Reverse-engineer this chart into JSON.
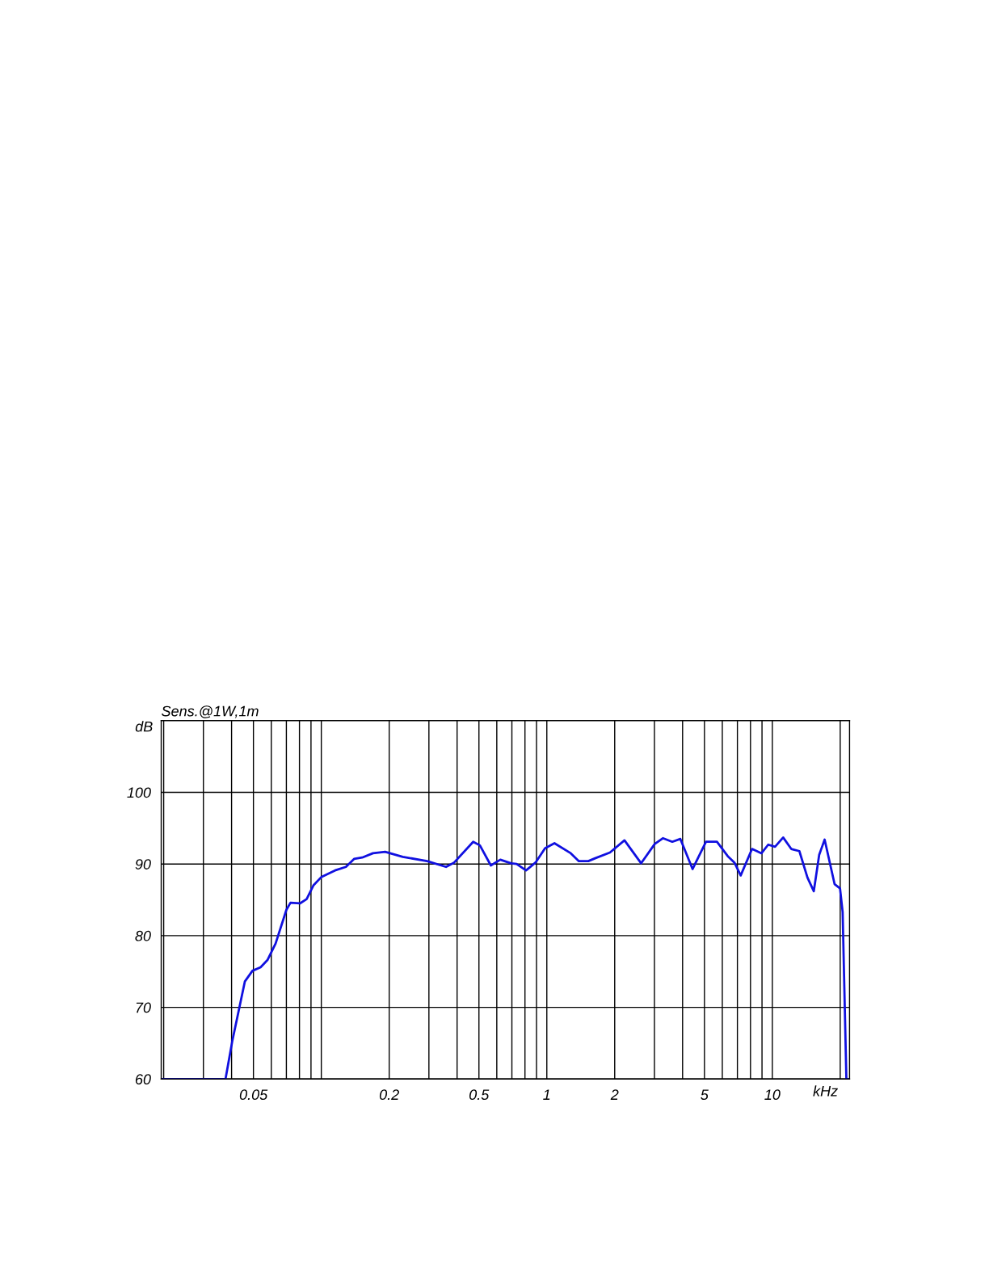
{
  "chart_data": {
    "type": "line",
    "title": "Sens.@1W,1m",
    "xlabel": "kHz",
    "ylabel": "dB",
    "log": "x",
    "x": [
      0.0195,
      0.0376,
      0.0403,
      0.0458,
      0.0495,
      0.0538,
      0.0577,
      0.0627,
      0.07,
      0.073,
      0.0804,
      0.0861,
      0.0922,
      0.1002,
      0.115,
      0.1286,
      0.1397,
      0.1518,
      0.1694,
      0.1919,
      0.2297,
      0.2945,
      0.3573,
      0.3882,
      0.4715,
      0.5049,
      0.5646,
      0.622,
      0.6948,
      0.734,
      0.809,
      0.891,
      0.982,
      1.081,
      1.277,
      1.387,
      1.528,
      1.637,
      1.905,
      2.21,
      2.62,
      3.01,
      3.27,
      3.6,
      3.91,
      4.43,
      5.08,
      5.68,
      6.34,
      6.79,
      7.24,
      8.13,
      8.95,
      9.59,
      10.28,
      11.17,
      12.13,
      13.18,
      14.32,
      15.27,
      16.14,
      17.06,
      18.88,
      19.96,
      20.5,
      21.3,
      22
    ],
    "series": [
      {
        "color": "#1010e0",
        "values": [
          60,
          60,
          65.3,
          73.6,
          75.1,
          75.6,
          76.6,
          78.9,
          83.6,
          84.6,
          84.5,
          85.1,
          87.0,
          88.2,
          89.1,
          89.6,
          90.7,
          90.9,
          91.5,
          91.7,
          91.0,
          90.4,
          89.6,
          90.2,
          93.1,
          92.6,
          89.8,
          90.6,
          90.1,
          90.0,
          89.1,
          90.2,
          92.2,
          92.9,
          91.5,
          90.4,
          90.4,
          90.8,
          91.6,
          93.3,
          90.1,
          92.8,
          93.6,
          93.1,
          93.5,
          89.3,
          93.1,
          93.1,
          91.1,
          90.2,
          88.4,
          92.1,
          91.5,
          92.7,
          92.4,
          93.7,
          92.1,
          91.8,
          88.1,
          86.2,
          91.3,
          93.4,
          87.2,
          86.6,
          83.3,
          60,
          60
        ]
      }
    ],
    "xlim": [
      0.0195,
      22
    ],
    "ylim": [
      60,
      110
    ],
    "xticks": [
      {
        "value": 0.02,
        "label": null
      },
      {
        "value": 0.03,
        "label": null
      },
      {
        "value": 0.04,
        "label": null
      },
      {
        "value": 0.05,
        "label": "0.05"
      },
      {
        "value": 0.06,
        "label": null
      },
      {
        "value": 0.07,
        "label": null
      },
      {
        "value": 0.08,
        "label": null
      },
      {
        "value": 0.09,
        "label": null
      },
      {
        "value": 0.1,
        "label": null
      },
      {
        "value": 0.2,
        "label": "0.2"
      },
      {
        "value": 0.3,
        "label": null
      },
      {
        "value": 0.4,
        "label": null
      },
      {
        "value": 0.5,
        "label": "0.5"
      },
      {
        "value": 0.6,
        "label": null
      },
      {
        "value": 0.7,
        "label": null
      },
      {
        "value": 0.8,
        "label": null
      },
      {
        "value": 0.9,
        "label": null
      },
      {
        "value": 1,
        "label": "1"
      },
      {
        "value": 2,
        "label": "2"
      },
      {
        "value": 3,
        "label": null
      },
      {
        "value": 4,
        "label": null
      },
      {
        "value": 5,
        "label": "5"
      },
      {
        "value": 6,
        "label": null
      },
      {
        "value": 7,
        "label": null
      },
      {
        "value": 8,
        "label": null
      },
      {
        "value": 9,
        "label": null
      },
      {
        "value": 10,
        "label": "10"
      },
      {
        "value": 20,
        "label": null
      }
    ],
    "yticks": [
      60,
      70,
      80,
      90,
      100
    ],
    "grid": true,
    "marker": "none",
    "line_style": "solid"
  }
}
